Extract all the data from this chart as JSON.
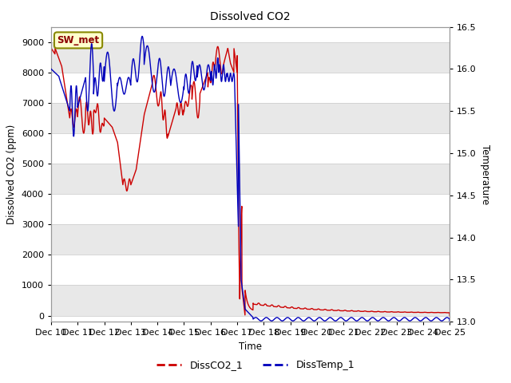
{
  "title": "Dissolved CO2",
  "ylabel_left": "Dissolved CO2 (ppm)",
  "ylabel_right": "Temperature",
  "xlabel": "Time",
  "ylim_left": [
    -200,
    9500
  ],
  "ylim_right": [
    13.0,
    16.5
  ],
  "yticks_left": [
    0,
    1000,
    2000,
    3000,
    4000,
    5000,
    6000,
    7000,
    8000,
    9000
  ],
  "yticks_right": [
    13.0,
    13.5,
    14.0,
    14.5,
    15.0,
    15.5,
    16.0,
    16.5
  ],
  "xlim": [
    0,
    15
  ],
  "xtick_labels": [
    "Dec 10",
    "Dec 11",
    "Dec 12",
    "Dec 13",
    "Dec 14",
    "Dec 15",
    "Dec 16",
    "Dec 17",
    "Dec 18",
    "Dec 19",
    "Dec 20",
    "Dec 21",
    "Dec 22",
    "Dec 23",
    "Dec 24",
    "Dec 25"
  ],
  "co2_color": "#cc0000",
  "temp_color": "#0000bb",
  "annotation_text": "SW_met",
  "annotation_bg": "#ffffcc",
  "annotation_border": "#888800",
  "legend_co2": "DissCO2_1",
  "legend_temp": "DissTemp_1",
  "bg_color": "#ffffff",
  "grid_color": "#d0d0d0",
  "band_color": "#e8e8e8"
}
